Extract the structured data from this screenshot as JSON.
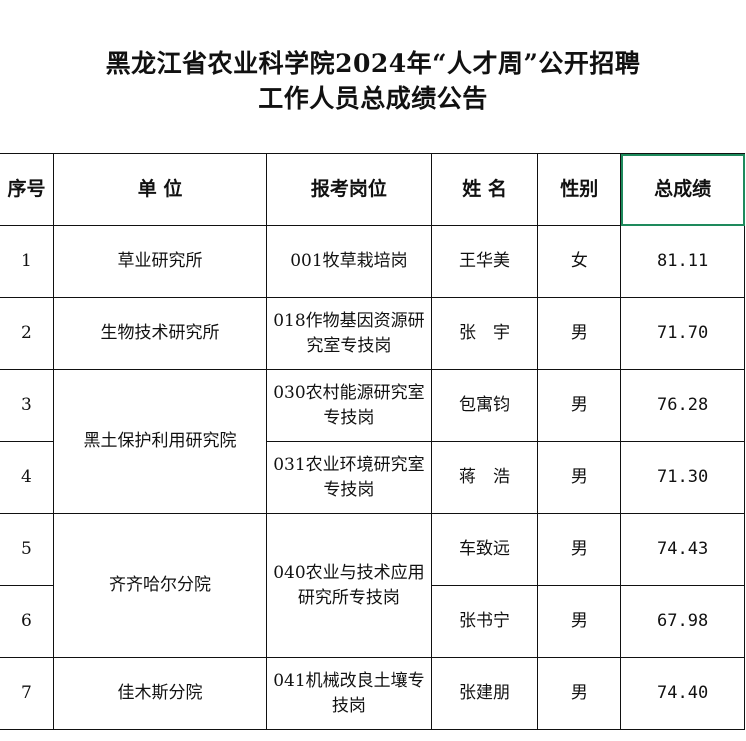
{
  "title_line1": "黑龙江省农业科学院2024年“人才周”公开招聘",
  "title_line2": "工作人员总成绩公告",
  "headers": [
    "序号",
    "单 位",
    "报考岗位",
    "姓 名",
    "性别",
    "总成绩"
  ],
  "rows": [
    {
      "no": "1",
      "unit": "草业研究所",
      "post": "001牧草栽培岗",
      "name": "王华美",
      "gender": "女",
      "score": "81.11"
    },
    {
      "no": "2",
      "unit": "生物技术研究所",
      "post": "018作物基因资源研究室专技岗",
      "name": "张　宇",
      "gender": "男",
      "score": "71.70"
    },
    {
      "no": "3",
      "unit": "黑土保护利用研究院",
      "post": "030农村能源研究室专技岗",
      "name": "包寓钧",
      "gender": "男",
      "score": "76.28"
    },
    {
      "no": "4",
      "unit": "黑土保护利用研究院",
      "post": "031农业环境研究室专技岗",
      "name": "蒋　浩",
      "gender": "男",
      "score": "71.30"
    },
    {
      "no": "5",
      "unit": "齐齐哈尔分院",
      "post": "040农业与技术应用研究所专技岗",
      "name": "车致远",
      "gender": "男",
      "score": "74.43"
    },
    {
      "no": "6",
      "unit": "齐齐哈尔分院",
      "post": "040农业与技术应用研究所专技岗",
      "name": "张书宁",
      "gender": "男",
      "score": "67.98"
    },
    {
      "no": "7",
      "unit": "佳木斯分院",
      "post": "041机械改良土壤专技岗",
      "name": "张建朋",
      "gender": "男",
      "score": "74.40"
    }
  ],
  "selection_color": "#1e8a5c"
}
